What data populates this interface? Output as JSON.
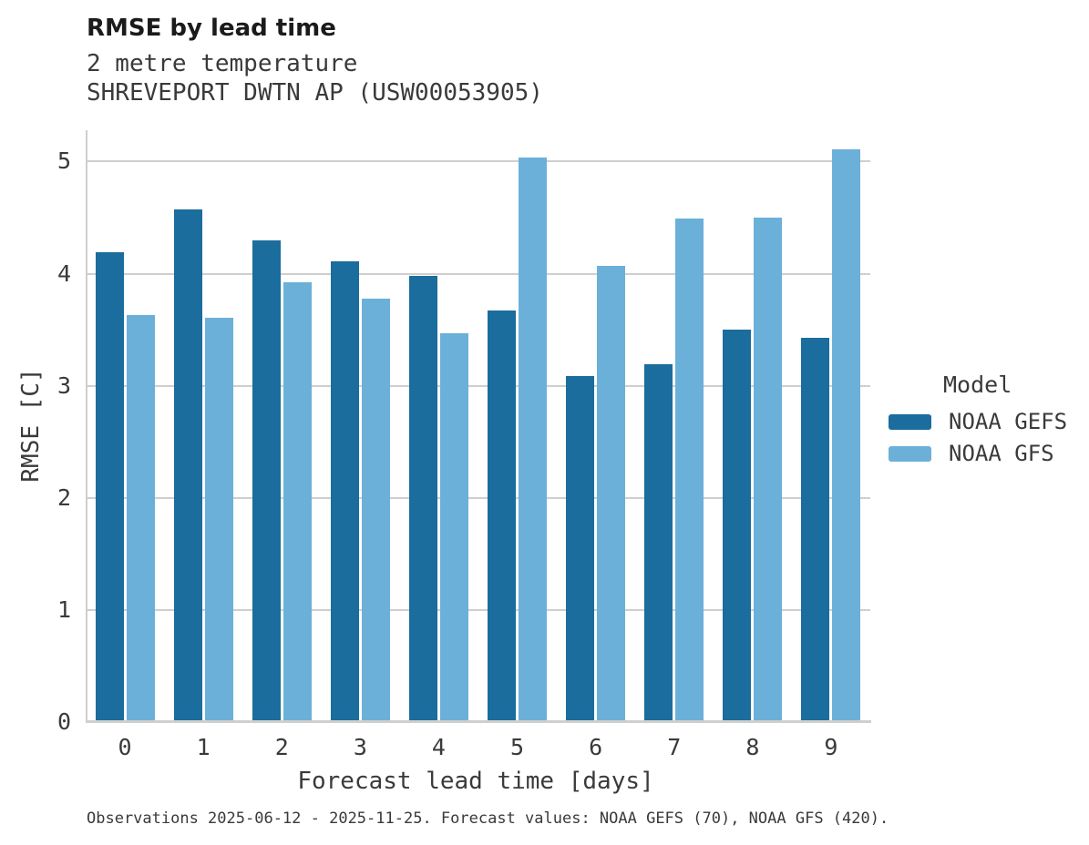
{
  "header": {
    "title": "RMSE by lead time",
    "subtitle": "2 metre temperature",
    "station": "SHREVEPORT DWTN AP (USW00053905)"
  },
  "legend": {
    "title": "Model",
    "entries": [
      {
        "label": "NOAA GEFS",
        "color": "#1a6d9c"
      },
      {
        "label": "NOAA GFS",
        "color": "#6bb0d8"
      }
    ]
  },
  "footer": {
    "text": "Observations 2025-06-12 - 2025-11-25. Forecast values: NOAA GEFS (70), NOAA GFS (420)."
  },
  "chart_data": {
    "type": "bar",
    "title": "RMSE by lead time",
    "subtitle": "2 metre temperature",
    "station": "SHREVEPORT DWTN AP (USW00053905)",
    "xlabel": "Forecast lead time [days]",
    "ylabel": "RMSE [C]",
    "categories": [
      "0",
      "1",
      "2",
      "3",
      "4",
      "5",
      "6",
      "7",
      "8",
      "9"
    ],
    "series": [
      {
        "name": "NOAA GEFS",
        "color": "#1a6d9c",
        "values": [
          4.19,
          4.57,
          4.3,
          4.11,
          3.98,
          3.67,
          3.09,
          3.19,
          3.5,
          3.43
        ]
      },
      {
        "name": "NOAA GFS",
        "color": "#6bb0d8",
        "values": [
          3.63,
          3.61,
          3.92,
          3.78,
          3.47,
          5.04,
          4.07,
          4.49,
          4.5,
          5.11
        ]
      }
    ],
    "ylim": [
      0,
      5.28
    ],
    "yticks": [
      0,
      1,
      2,
      3,
      4,
      5
    ],
    "grid": true,
    "legend_title": "Model",
    "legend_position": "right",
    "colors": {
      "grid": "#cfcfcf",
      "text": "#3a3a3a",
      "title": "#1b1b1b",
      "background": "#ffffff"
    }
  }
}
